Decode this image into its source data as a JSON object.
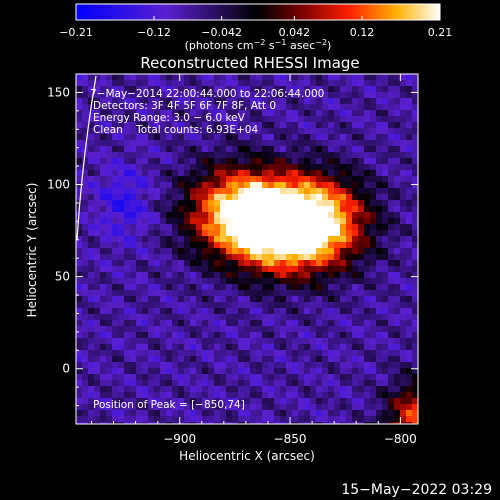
{
  "chart_data": {
    "type": "heatmap",
    "title": "Reconstructed RHESSI Image",
    "xlabel": "Heliocentric X (arcsec)",
    "ylabel": "Heliocentric Y (arcsec)",
    "xlim": [
      -947,
      -792
    ],
    "ylim": [
      -30,
      160
    ],
    "x_ticks": [
      -900,
      -850,
      -800
    ],
    "x_tick_labels": [
      "−900",
      "−850",
      "−800"
    ],
    "y_ticks": [
      0,
      50,
      100,
      150
    ],
    "y_tick_labels": [
      "0",
      "50",
      "100",
      "150"
    ],
    "colorbar": {
      "label_prefix": "(photons cm",
      "label_exp1": "−2",
      "label_mid": " s",
      "label_exp2": "−1",
      "label_end": " asec",
      "label_exp3": "−2",
      "label_close": ")",
      "range": [
        -0.21,
        0.21
      ],
      "ticks": [
        -0.21,
        -0.12,
        -0.042,
        0.042,
        0.12,
        0.21
      ],
      "tick_labels": [
        "−0.21",
        "−0.12",
        "−0.042",
        "0.042",
        "0.12",
        "0.21"
      ]
    },
    "annotations": [
      "7−May−2014 22:00:44.000 to 22:06:44.000",
      "Detectors: 3F 4F 5F 6F 7F 8F, Att 0",
      "Energy Range: 3.0 − 6.0 keV",
      "Clean    Total counts: 6.93E+04"
    ],
    "peak_label": "Position of Peak = [−850,74]",
    "peak_position": [
      -850,
      74
    ],
    "sources": [
      {
        "x": -853,
        "y": 77,
        "peak": 0.21
      },
      {
        "x": -875,
        "y": 85,
        "peak": 0.17
      },
      {
        "x": -835,
        "y": 80,
        "peak": 0.13
      }
    ]
  },
  "footer": {
    "timestamp": "15−May−2022 03:29"
  }
}
